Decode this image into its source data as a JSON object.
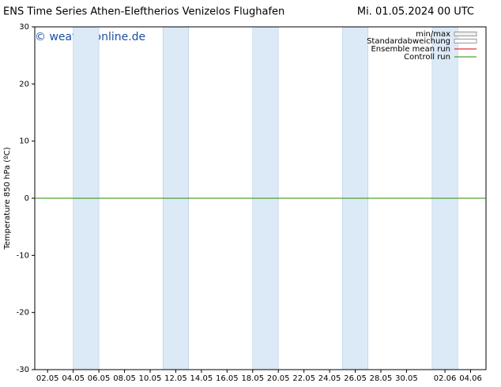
{
  "chart_data": {
    "type": "line",
    "title": "ENS Time Series Athen-Eleftherios Venizelos Flughafen",
    "subtitle": "Mi. 01.05.2024 00 UTC",
    "watermark": "© weatheronline.de",
    "y_label": "Temperature 850 hPa (ºC)",
    "x": [
      0,
      35.2
    ],
    "xlim": [
      0,
      35.2
    ],
    "xticks": [
      {
        "value": 1,
        "label": "02.05"
      },
      {
        "value": 3,
        "label": "04.05"
      },
      {
        "value": 5,
        "label": "06.05"
      },
      {
        "value": 7,
        "label": "08.05"
      },
      {
        "value": 9,
        "label": "10.05"
      },
      {
        "value": 11,
        "label": "12.05"
      },
      {
        "value": 13,
        "label": "14.05"
      },
      {
        "value": 15,
        "label": "16.05"
      },
      {
        "value": 17,
        "label": "18.05"
      },
      {
        "value": 19,
        "label": "20.05"
      },
      {
        "value": 21,
        "label": "22.05"
      },
      {
        "value": 23,
        "label": "24.05"
      },
      {
        "value": 25,
        "label": "26.05"
      },
      {
        "value": 27,
        "label": "28.05"
      },
      {
        "value": 29,
        "label": "30.05"
      },
      {
        "value": 32,
        "label": "02.06"
      },
      {
        "value": 34,
        "label": "04.06"
      }
    ],
    "ylim": [
      -30,
      30
    ],
    "yticks": [
      -30,
      -20,
      -10,
      0,
      10,
      20,
      30
    ],
    "shaded_ranges": [
      [
        3,
        5
      ],
      [
        10,
        12
      ],
      [
        17,
        19
      ],
      [
        24,
        26
      ],
      [
        31,
        33
      ]
    ],
    "shade_color": "#dce9f6",
    "series": [
      {
        "name": "min/max",
        "color": "#999999",
        "values": [
          null,
          null
        ]
      },
      {
        "name": "Standardabweichung",
        "color": "#999999",
        "values": [
          null,
          null
        ]
      },
      {
        "name": "Ensemble mean run",
        "color": "#dd0000",
        "values": [
          0,
          0
        ]
      },
      {
        "name": "Controll run",
        "color": "#2a8a00",
        "values": [
          0,
          0
        ]
      }
    ]
  }
}
